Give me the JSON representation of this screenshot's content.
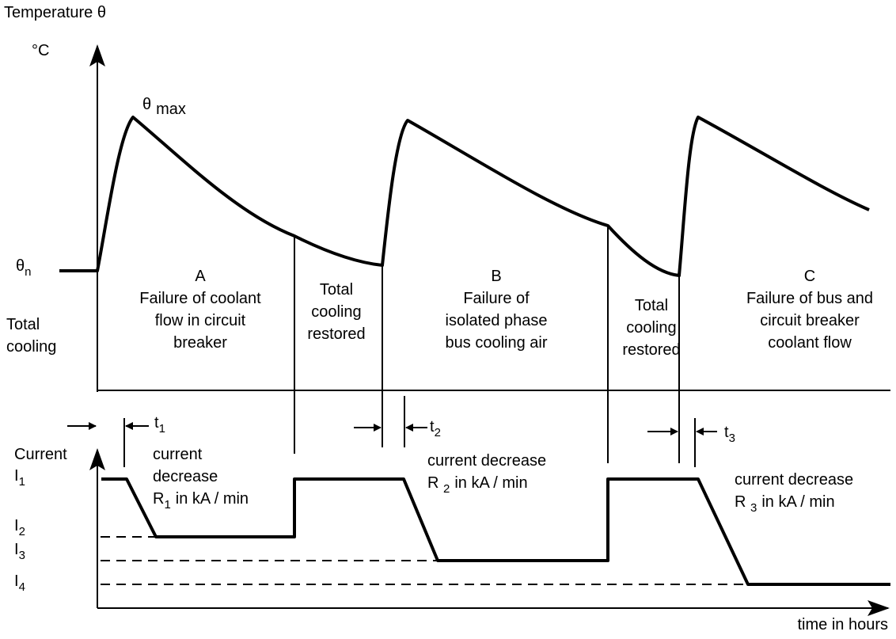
{
  "axes": {
    "temperature_label": "Temperature θ",
    "temperature_unit": "°C",
    "current_label": "Current",
    "time_label": "time in hours"
  },
  "temperature_levels": {
    "max": {
      "symbol": "θ",
      "subscript": "max"
    },
    "nominal": {
      "symbol": "θ",
      "subscript": "n"
    }
  },
  "current_levels": [
    {
      "symbol": "I",
      "subscript": "1"
    },
    {
      "symbol": "I",
      "subscript": "2"
    },
    {
      "symbol": "I",
      "subscript": "3"
    },
    {
      "symbol": "I",
      "subscript": "4"
    }
  ],
  "intervals": [
    {
      "symbol": "t",
      "subscript": "1"
    },
    {
      "symbol": "t",
      "subscript": "2"
    },
    {
      "symbol": "t",
      "subscript": "3"
    }
  ],
  "phases": [
    {
      "lines": [
        "Total",
        "cooling"
      ]
    },
    {
      "letter": "A",
      "lines": [
        "Failure of coolant",
        "flow in circuit",
        "breaker"
      ]
    },
    {
      "lines": [
        "Total",
        "cooling",
        "restored"
      ]
    },
    {
      "letter": "B",
      "lines": [
        "Failure of",
        "isolated phase",
        "bus cooling air"
      ]
    },
    {
      "lines": [
        "Total",
        "cooling",
        "restored"
      ]
    },
    {
      "letter": "C",
      "lines": [
        "Failure of bus and",
        "circuit breaker",
        "coolant flow"
      ]
    }
  ],
  "current_decreases": [
    {
      "lines": [
        "current",
        "decrease"
      ],
      "rate": {
        "symbol": "R",
        "subscript": "1"
      },
      "unit": "in kA / min"
    },
    {
      "lines": [
        "current decrease"
      ],
      "rate": {
        "symbol": "R ",
        "subscript": "2"
      },
      "unit": "in kA / min"
    },
    {
      "lines": [
        "current decrease"
      ],
      "rate": {
        "symbol": "R ",
        "subscript": "3"
      },
      "unit": "in kA / min"
    }
  ]
}
